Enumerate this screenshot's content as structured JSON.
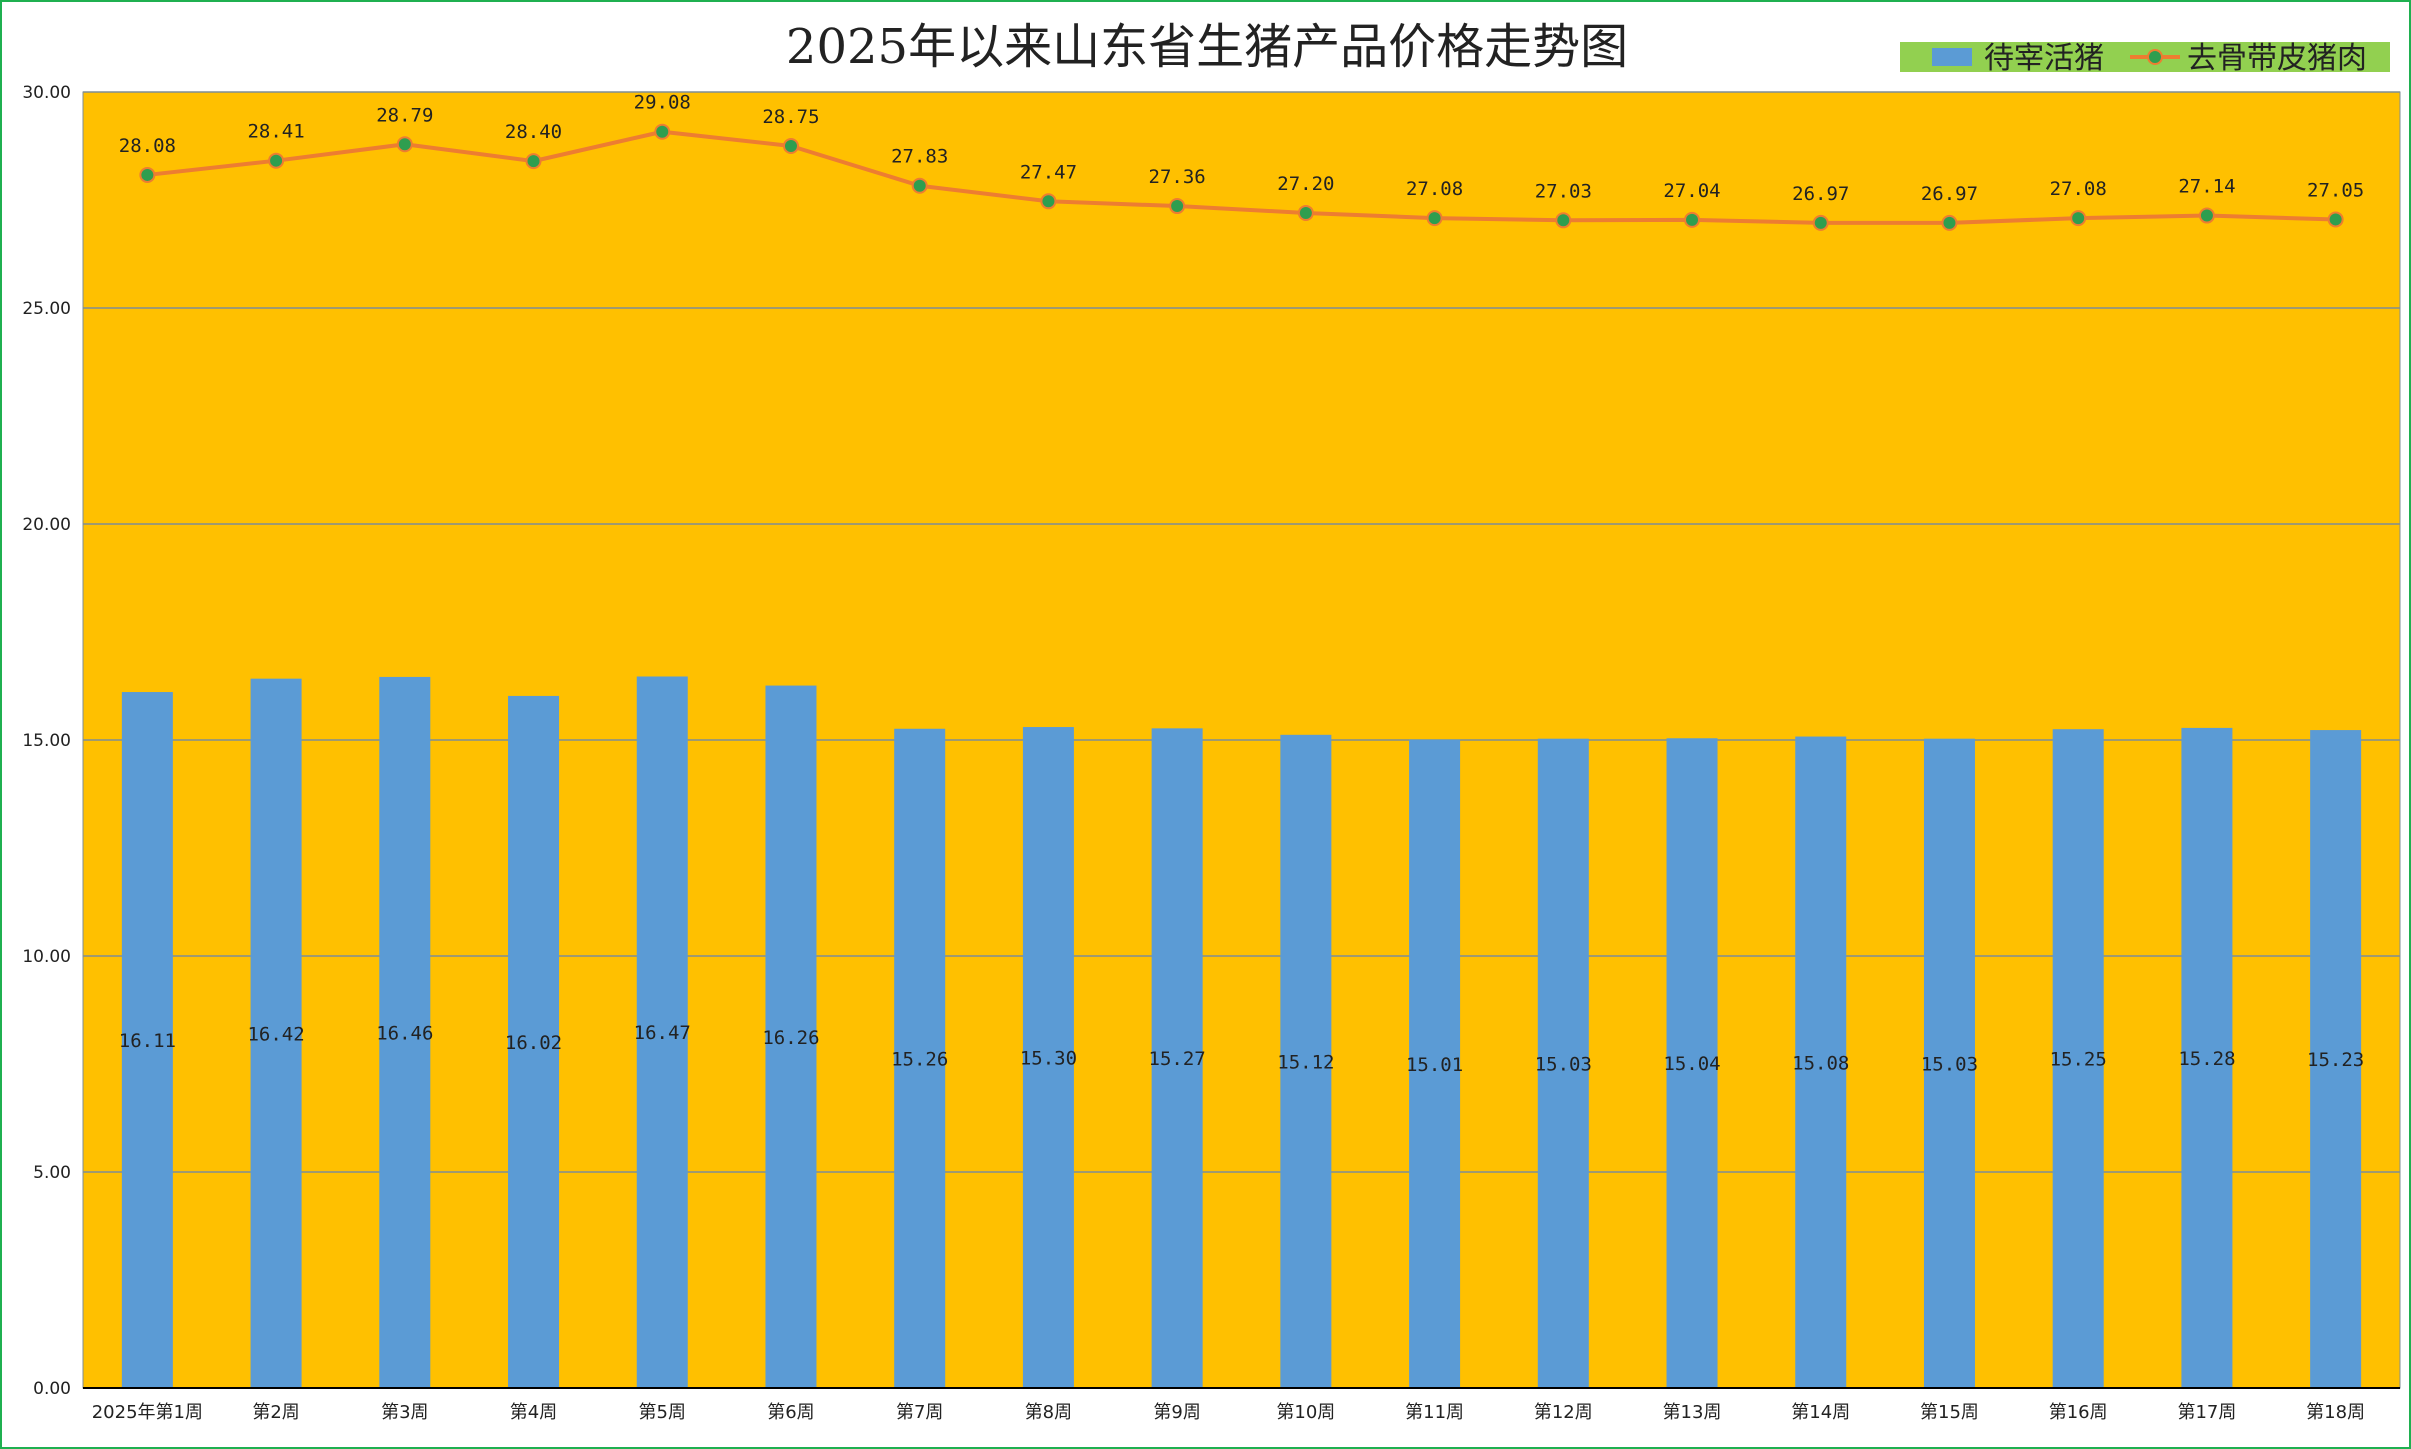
{
  "chart_data": {
    "type": "bar+line",
    "title": "2025年以来山东省生猪产品价格走势图",
    "categories": [
      "2025年第1周",
      "第2周",
      "第3周",
      "第4周",
      "第5周",
      "第6周",
      "第7周",
      "第8周",
      "第9周",
      "第10周",
      "第11周",
      "第12周",
      "第13周",
      "第14周",
      "第15周",
      "第16周",
      "第17周",
      "第18周"
    ],
    "y_ticks": [
      "0.00",
      "5.00",
      "10.00",
      "15.00",
      "20.00",
      "25.00",
      "30.00"
    ],
    "ylim": [
      0,
      30
    ],
    "grid": true,
    "legend_position": "top-right",
    "series": [
      {
        "name": "待宰活猪",
        "type": "bar",
        "color": "#5b9bd5",
        "values": [
          16.11,
          16.42,
          16.46,
          16.02,
          16.47,
          16.26,
          15.26,
          15.3,
          15.27,
          15.12,
          15.01,
          15.03,
          15.04,
          15.08,
          15.03,
          15.25,
          15.28,
          15.23
        ],
        "labels": [
          "16.11",
          "16.42",
          "16.46",
          "16.02",
          "16.47",
          "16.26",
          "15.26",
          "15.30",
          "15.27",
          "15.12",
          "15.01",
          "15.03",
          "15.04",
          "15.08",
          "15.03",
          "15.25",
          "15.28",
          "15.23"
        ]
      },
      {
        "name": "去骨带皮猪肉",
        "type": "line",
        "color": "#ed7d31",
        "marker_color": "#2e9e4f",
        "values": [
          28.08,
          28.41,
          28.79,
          28.4,
          29.08,
          28.75,
          27.83,
          27.47,
          27.36,
          27.2,
          27.08,
          27.03,
          27.04,
          26.97,
          26.97,
          27.08,
          27.14,
          27.05
        ],
        "labels": [
          "28.08",
          "28.41",
          "28.79",
          "28.40",
          "29.08",
          "28.75",
          "27.83",
          "27.47",
          "27.36",
          "27.20",
          "27.08",
          "27.03",
          "27.04",
          "26.97",
          "26.97",
          "27.08",
          "27.14",
          "27.05"
        ]
      }
    ],
    "colors": {
      "plot_background": "#ffc000",
      "gridline": "#7f8e96",
      "legend_background": "#92d050",
      "frame_border": "#1fb050"
    }
  }
}
